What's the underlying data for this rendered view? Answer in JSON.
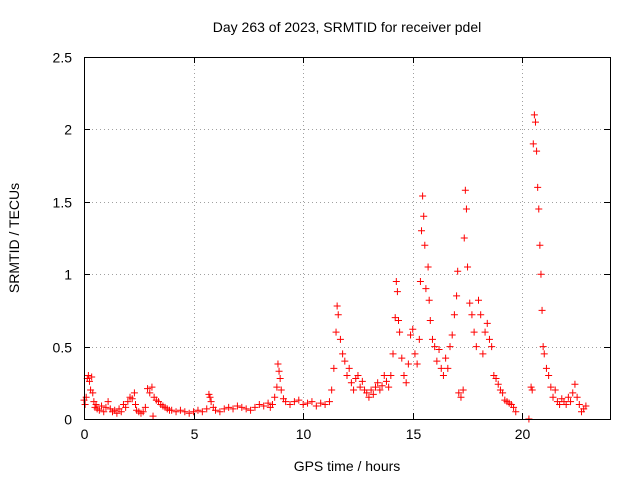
{
  "chart_data": {
    "type": "scatter",
    "title": "Day 263 of 2023, SRMTID for receiver pdel",
    "xlabel": "GPS time / hours",
    "ylabel": "SRMTID / TECUs",
    "xlim": [
      0,
      24
    ],
    "ylim": [
      0,
      2.5
    ],
    "xticks": [
      0,
      5,
      10,
      15,
      20
    ],
    "yticks": [
      0,
      0.5,
      1,
      1.5,
      2,
      2.5
    ],
    "xtick_labels": [
      "0",
      "5",
      "10",
      "15",
      "20"
    ],
    "ytick_labels": [
      "0",
      "0.5",
      "1",
      "1.5",
      "2",
      "2.5"
    ],
    "grid": true,
    "marker": "+",
    "color": "#ff0000",
    "series": [
      {
        "name": "pdel",
        "points": [
          [
            0.0,
            0.13
          ],
          [
            0.05,
            0.1
          ],
          [
            0.1,
            0.15
          ],
          [
            0.15,
            0.28
          ],
          [
            0.2,
            0.3
          ],
          [
            0.25,
            0.26
          ],
          [
            0.3,
            0.2
          ],
          [
            0.35,
            0.29
          ],
          [
            0.4,
            0.18
          ],
          [
            0.45,
            0.12
          ],
          [
            0.5,
            0.08
          ],
          [
            0.55,
            0.1
          ],
          [
            0.6,
            0.07
          ],
          [
            0.7,
            0.06
          ],
          [
            0.8,
            0.09
          ],
          [
            0.9,
            0.05
          ],
          [
            1.0,
            0.08
          ],
          [
            1.1,
            0.12
          ],
          [
            1.2,
            0.07
          ],
          [
            1.3,
            0.05
          ],
          [
            1.4,
            0.06
          ],
          [
            1.5,
            0.04
          ],
          [
            1.6,
            0.07
          ],
          [
            1.7,
            0.05
          ],
          [
            1.8,
            0.1
          ],
          [
            1.9,
            0.08
          ],
          [
            2.0,
            0.12
          ],
          [
            2.1,
            0.15
          ],
          [
            2.2,
            0.14
          ],
          [
            2.3,
            0.18
          ],
          [
            2.35,
            0.1
          ],
          [
            2.4,
            0.06
          ],
          [
            2.5,
            0.05
          ],
          [
            2.6,
            0.04
          ],
          [
            2.7,
            0.05
          ],
          [
            2.8,
            0.08
          ],
          [
            2.9,
            0.21
          ],
          [
            3.0,
            0.18
          ],
          [
            3.1,
            0.22
          ],
          [
            3.15,
            0.02
          ],
          [
            3.2,
            0.15
          ],
          [
            3.3,
            0.13
          ],
          [
            3.4,
            0.12
          ],
          [
            3.5,
            0.1
          ],
          [
            3.6,
            0.09
          ],
          [
            3.7,
            0.08
          ],
          [
            3.8,
            0.07
          ],
          [
            3.9,
            0.06
          ],
          [
            4.0,
            0.06
          ],
          [
            4.2,
            0.05
          ],
          [
            4.4,
            0.06
          ],
          [
            4.6,
            0.05
          ],
          [
            4.8,
            0.04
          ],
          [
            5.0,
            0.05
          ],
          [
            5.2,
            0.06
          ],
          [
            5.4,
            0.05
          ],
          [
            5.6,
            0.07
          ],
          [
            5.7,
            0.17
          ],
          [
            5.75,
            0.15
          ],
          [
            5.8,
            0.12
          ],
          [
            5.9,
            0.08
          ],
          [
            6.0,
            0.06
          ],
          [
            6.2,
            0.05
          ],
          [
            6.4,
            0.07
          ],
          [
            6.6,
            0.08
          ],
          [
            6.8,
            0.07
          ],
          [
            7.0,
            0.09
          ],
          [
            7.2,
            0.08
          ],
          [
            7.4,
            0.07
          ],
          [
            7.6,
            0.06
          ],
          [
            7.8,
            0.08
          ],
          [
            8.0,
            0.1
          ],
          [
            8.2,
            0.09
          ],
          [
            8.4,
            0.11
          ],
          [
            8.5,
            0.08
          ],
          [
            8.6,
            0.1
          ],
          [
            8.7,
            0.15
          ],
          [
            8.8,
            0.22
          ],
          [
            8.85,
            0.38
          ],
          [
            8.9,
            0.33
          ],
          [
            8.95,
            0.28
          ],
          [
            9.0,
            0.2
          ],
          [
            9.1,
            0.14
          ],
          [
            9.2,
            0.12
          ],
          [
            9.4,
            0.1
          ],
          [
            9.6,
            0.12
          ],
          [
            9.8,
            0.13
          ],
          [
            10.0,
            0.1
          ],
          [
            10.2,
            0.11
          ],
          [
            10.4,
            0.12
          ],
          [
            10.6,
            0.09
          ],
          [
            10.8,
            0.11
          ],
          [
            11.0,
            0.1
          ],
          [
            11.2,
            0.12
          ],
          [
            11.3,
            0.2
          ],
          [
            11.4,
            0.35
          ],
          [
            11.5,
            0.6
          ],
          [
            11.55,
            0.78
          ],
          [
            11.6,
            0.72
          ],
          [
            11.7,
            0.55
          ],
          [
            11.8,
            0.45
          ],
          [
            11.9,
            0.4
          ],
          [
            12.0,
            0.3
          ],
          [
            12.1,
            0.35
          ],
          [
            12.2,
            0.25
          ],
          [
            12.3,
            0.2
          ],
          [
            12.4,
            0.28
          ],
          [
            12.5,
            0.3
          ],
          [
            12.6,
            0.22
          ],
          [
            12.7,
            0.26
          ],
          [
            12.8,
            0.2
          ],
          [
            12.9,
            0.18
          ],
          [
            13.0,
            0.15
          ],
          [
            13.1,
            0.2
          ],
          [
            13.2,
            0.17
          ],
          [
            13.3,
            0.22
          ],
          [
            13.4,
            0.25
          ],
          [
            13.5,
            0.2
          ],
          [
            13.6,
            0.23
          ],
          [
            13.7,
            0.3
          ],
          [
            13.8,
            0.26
          ],
          [
            13.9,
            0.22
          ],
          [
            14.0,
            0.3
          ],
          [
            14.1,
            0.45
          ],
          [
            14.2,
            0.7
          ],
          [
            14.25,
            0.95
          ],
          [
            14.3,
            0.88
          ],
          [
            14.35,
            0.68
          ],
          [
            14.4,
            0.6
          ],
          [
            14.5,
            0.42
          ],
          [
            14.6,
            0.3
          ],
          [
            14.7,
            0.25
          ],
          [
            14.8,
            0.38
          ],
          [
            14.9,
            0.58
          ],
          [
            15.0,
            0.62
          ],
          [
            15.1,
            0.45
          ],
          [
            15.2,
            0.38
          ],
          [
            15.3,
            0.55
          ],
          [
            15.35,
            0.95
          ],
          [
            15.4,
            1.3
          ],
          [
            15.45,
            1.54
          ],
          [
            15.5,
            1.4
          ],
          [
            15.55,
            1.2
          ],
          [
            15.6,
            0.9
          ],
          [
            15.7,
            1.05
          ],
          [
            15.75,
            0.82
          ],
          [
            15.8,
            0.68
          ],
          [
            15.9,
            0.55
          ],
          [
            16.0,
            0.5
          ],
          [
            16.1,
            0.4
          ],
          [
            16.2,
            0.48
          ],
          [
            16.3,
            0.35
          ],
          [
            16.4,
            0.3
          ],
          [
            16.5,
            0.42
          ],
          [
            16.6,
            0.35
          ],
          [
            16.7,
            0.5
          ],
          [
            16.8,
            0.58
          ],
          [
            16.9,
            0.72
          ],
          [
            17.0,
            0.85
          ],
          [
            17.05,
            1.02
          ],
          [
            17.1,
            0.18
          ],
          [
            17.2,
            0.15
          ],
          [
            17.3,
            0.2
          ],
          [
            17.35,
            1.25
          ],
          [
            17.4,
            1.58
          ],
          [
            17.45,
            1.45
          ],
          [
            17.5,
            1.05
          ],
          [
            17.6,
            0.8
          ],
          [
            17.7,
            0.72
          ],
          [
            17.8,
            0.6
          ],
          [
            17.9,
            0.5
          ],
          [
            18.0,
            0.82
          ],
          [
            18.1,
            0.72
          ],
          [
            18.2,
            0.45
          ],
          [
            18.3,
            0.6
          ],
          [
            18.4,
            0.66
          ],
          [
            18.5,
            0.55
          ],
          [
            18.6,
            0.5
          ],
          [
            18.7,
            0.3
          ],
          [
            18.8,
            0.28
          ],
          [
            18.9,
            0.24
          ],
          [
            19.0,
            0.2
          ],
          [
            19.1,
            0.18
          ],
          [
            19.2,
            0.13
          ],
          [
            19.3,
            0.12
          ],
          [
            19.4,
            0.11
          ],
          [
            19.5,
            0.1
          ],
          [
            19.6,
            0.08
          ],
          [
            19.7,
            0.05
          ],
          [
            20.3,
            0.0
          ],
          [
            20.4,
            0.22
          ],
          [
            20.45,
            0.2
          ],
          [
            20.5,
            1.9
          ],
          [
            20.55,
            2.1
          ],
          [
            20.6,
            2.05
          ],
          [
            20.65,
            1.85
          ],
          [
            20.7,
            1.6
          ],
          [
            20.75,
            1.45
          ],
          [
            20.8,
            1.2
          ],
          [
            20.85,
            1.0
          ],
          [
            20.9,
            0.75
          ],
          [
            20.95,
            0.5
          ],
          [
            21.0,
            0.45
          ],
          [
            21.1,
            0.35
          ],
          [
            21.2,
            0.3
          ],
          [
            21.3,
            0.22
          ],
          [
            21.4,
            0.15
          ],
          [
            21.5,
            0.2
          ],
          [
            21.6,
            0.12
          ],
          [
            21.7,
            0.1
          ],
          [
            21.8,
            0.14
          ],
          [
            21.9,
            0.12
          ],
          [
            22.0,
            0.1
          ],
          [
            22.1,
            0.15
          ],
          [
            22.2,
            0.12
          ],
          [
            22.3,
            0.18
          ],
          [
            22.4,
            0.24
          ],
          [
            22.5,
            0.15
          ],
          [
            22.6,
            0.1
          ],
          [
            22.7,
            0.05
          ],
          [
            22.8,
            0.07
          ],
          [
            22.9,
            0.09
          ]
        ]
      }
    ]
  }
}
